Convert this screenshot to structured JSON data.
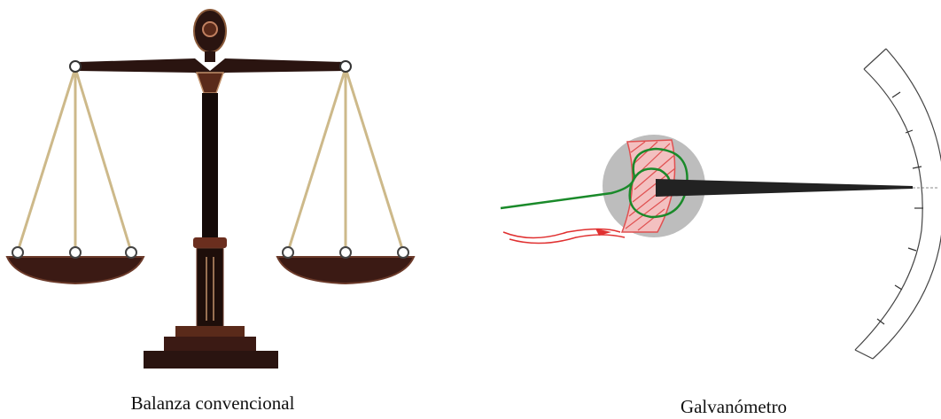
{
  "captions": {
    "balance": "Balanza convencional",
    "galvanometer": "Galvanómetro"
  }
}
